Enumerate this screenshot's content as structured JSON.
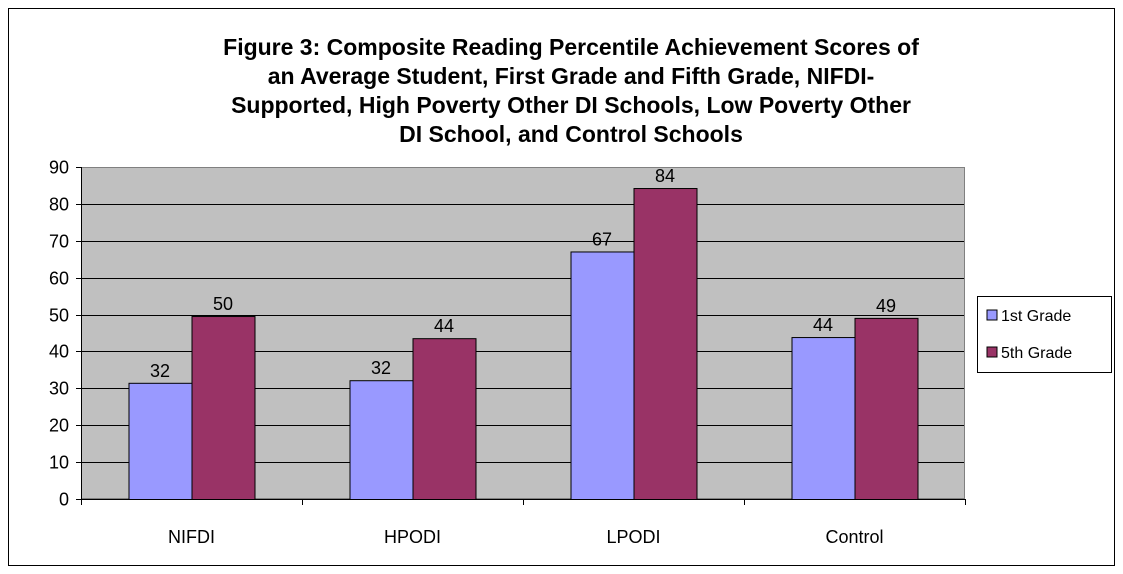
{
  "chart_data": {
    "type": "bar",
    "title_lines": [
      "Figure 3: Composite Reading Percentile Achievement Scores of",
      "an Average Student, First Grade and Fifth Grade, NIFDI-",
      "Supported, High Poverty Other DI Schools, Low Poverty Other",
      "DI School, and Control Schools"
    ],
    "categories": [
      "NIFDI",
      "HPODI",
      "LPODI",
      "Control"
    ],
    "series": [
      {
        "name": "1st Grade",
        "values": [
          31.5,
          32.2,
          67.1,
          43.9
        ],
        "labels": [
          "32",
          "32",
          "67",
          "44"
        ],
        "color": "#9999ff"
      },
      {
        "name": "5th Grade",
        "values": [
          49.6,
          43.6,
          84.3,
          49.1
        ],
        "labels": [
          "50",
          "44",
          "84",
          "49"
        ],
        "color": "#993366"
      }
    ],
    "ylim": [
      0,
      90
    ],
    "y_ticks": [
      "0",
      "10",
      "20",
      "30",
      "40",
      "50",
      "60",
      "70",
      "80",
      "90"
    ],
    "grid": true,
    "legend_position": "right",
    "plot_background": "#c0c0c0",
    "xlabel": "",
    "ylabel": ""
  }
}
